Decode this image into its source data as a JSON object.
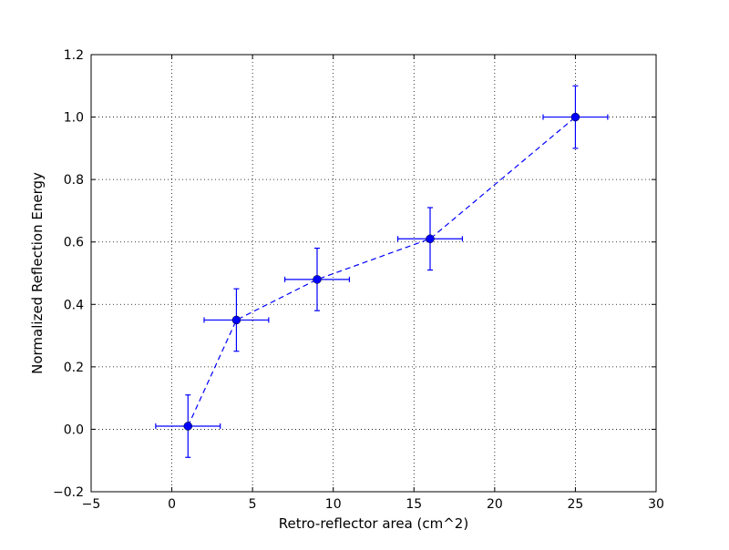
{
  "chart_data": {
    "type": "scatter",
    "title": "",
    "xlabel": "Retro-reflector area (cm^2)",
    "ylabel": "Normalized Reflection Energy",
    "xlim": [
      -5,
      30
    ],
    "ylim": [
      -0.2,
      1.2
    ],
    "x_ticks": [
      "−5",
      "0",
      "5",
      "10",
      "15",
      "20",
      "25",
      "30"
    ],
    "y_ticks": [
      "−0.2",
      "0.0",
      "0.2",
      "0.4",
      "0.6",
      "0.8",
      "1.0",
      "1.2"
    ],
    "grid": true,
    "grid_style": "dotted",
    "line_style": "dashed",
    "marker": "circle",
    "color": "#0000ff",
    "series": [
      {
        "points": [
          {
            "x": 1,
            "y": 0.01,
            "xerr": 2,
            "yerr": 0.1
          },
          {
            "x": 4,
            "y": 0.35,
            "xerr": 2,
            "yerr": 0.1
          },
          {
            "x": 9,
            "y": 0.48,
            "xerr": 2,
            "yerr": 0.1
          },
          {
            "x": 16,
            "y": 0.61,
            "xerr": 2,
            "yerr": 0.1
          },
          {
            "x": 25,
            "y": 1.0,
            "xerr": 2,
            "yerr": 0.1
          }
        ]
      }
    ]
  }
}
